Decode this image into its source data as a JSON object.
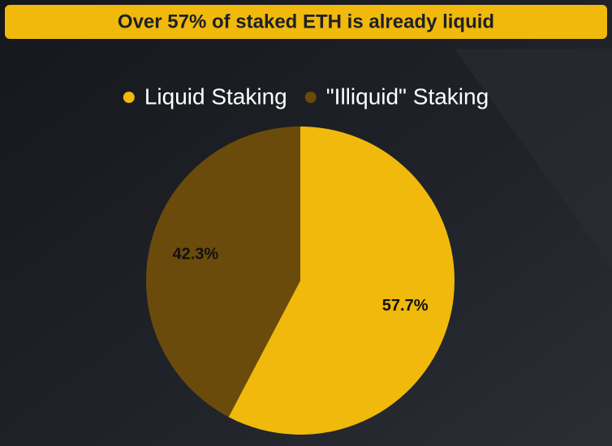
{
  "chart_data": {
    "type": "pie",
    "title": "Over 57% of staked ETH is already liquid",
    "categories": [
      "Liquid Staking",
      "\"Illiquid\" Staking"
    ],
    "values": [
      57.7,
      42.3
    ],
    "value_labels": [
      "57.7%",
      "42.3%"
    ],
    "colors": [
      "#f0b90b",
      "#6b4b0c"
    ]
  }
}
